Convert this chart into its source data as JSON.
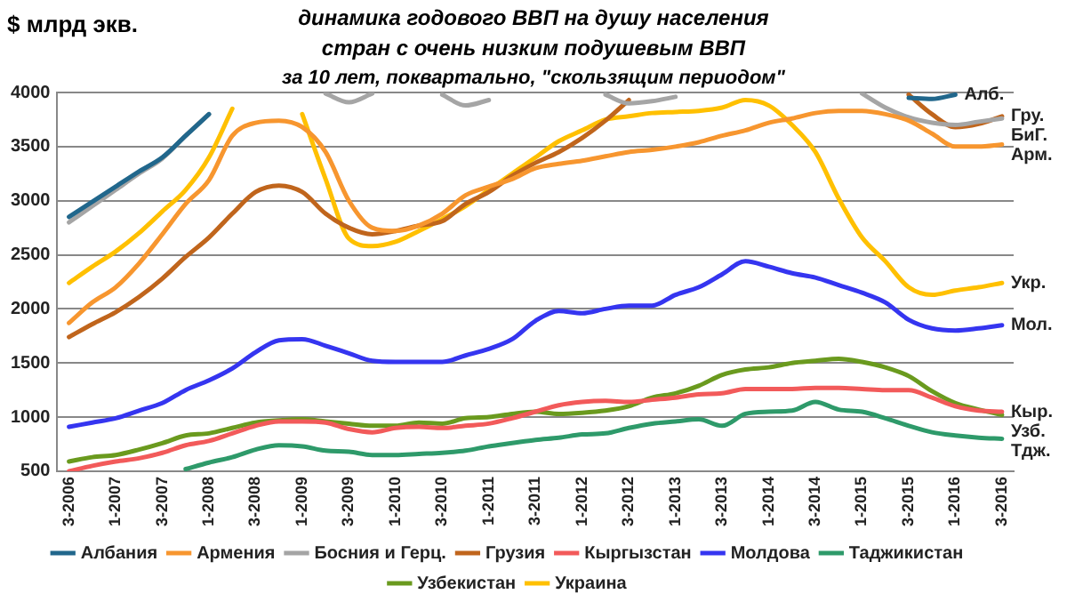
{
  "chart_data": {
    "type": "line",
    "title": "динамика годового ВВП на душу населения\nстран с очень низким подушевым ВВП",
    "subtitle": "за 10 лет, поквартально, \"скользящим периодом\"",
    "ylabel": "$ млрд экв.",
    "categories": [
      "3-2006",
      null,
      "1-2007",
      null,
      "3-2007",
      null,
      "1-2008",
      null,
      "3-2008",
      null,
      "1-2009",
      null,
      "3-2009",
      null,
      "1-2010",
      null,
      "3-2010",
      null,
      "1-2011",
      null,
      "3-2011",
      null,
      "1-2012",
      null,
      "3-2012",
      null,
      "1-2013",
      null,
      "3-2013",
      null,
      "1-2014",
      null,
      "3-2014",
      null,
      "1-2015",
      null,
      "3-2015",
      null,
      "1-2016",
      null,
      "3-2016"
    ],
    "ylim": [
      500,
      4000
    ],
    "yticks": [
      500,
      1000,
      1500,
      2000,
      2500,
      3000,
      3500,
      4000
    ],
    "grid": "y",
    "legend": "bottom",
    "marker": "none",
    "line_style": "solid",
    "series": [
      {
        "name": "Албания",
        "color": "#21678c",
        "values": [
          2850,
          2990,
          3130,
          3270,
          3400,
          3600,
          3800,
          null,
          null,
          null,
          null,
          null,
          null,
          null,
          null,
          null,
          null,
          null,
          null,
          null,
          null,
          null,
          null,
          null,
          null,
          null,
          null,
          null,
          null,
          null,
          null,
          null,
          null,
          null,
          null,
          null,
          3950,
          3940,
          3980,
          null,
          null
        ]
      },
      {
        "name": "Армения",
        "color": "#f7962f",
        "values": [
          1870,
          2060,
          2200,
          2420,
          2690,
          2970,
          3190,
          3600,
          3720,
          3740,
          3680,
          3450,
          3000,
          2750,
          2720,
          2770,
          2880,
          3050,
          3130,
          3200,
          3300,
          3340,
          3370,
          3410,
          3450,
          3470,
          3500,
          3540,
          3600,
          3650,
          3720,
          3760,
          3810,
          3830,
          3830,
          3800,
          3740,
          3620,
          3500,
          3500,
          3520
        ]
      },
      {
        "name": "Босния и Герц.",
        "color": "#a5a5a5",
        "values": [
          2800,
          2950,
          3100,
          3250,
          3390,
          3600,
          3800,
          null,
          null,
          null,
          null,
          3990,
          3910,
          3990,
          null,
          null,
          3980,
          3880,
          3930,
          null,
          null,
          null,
          null,
          3980,
          3900,
          3920,
          3960,
          null,
          null,
          null,
          null,
          null,
          null,
          null,
          3990,
          3860,
          3770,
          3720,
          3700,
          3730,
          3760
        ]
      },
      {
        "name": "Грузия",
        "color": "#c0651c",
        "values": [
          1740,
          1860,
          1970,
          2110,
          2280,
          2480,
          2660,
          2880,
          3080,
          3140,
          3080,
          2880,
          2750,
          2690,
          2720,
          2770,
          2810,
          2970,
          3080,
          3230,
          3350,
          3450,
          3580,
          3740,
          3930,
          null,
          null,
          null,
          null,
          null,
          null,
          null,
          null,
          null,
          null,
          null,
          3980,
          3800,
          3680,
          3710,
          3780
        ]
      },
      {
        "name": "Кыргызстан",
        "color": "#f25a5a",
        "values": [
          500,
          550,
          590,
          620,
          670,
          740,
          780,
          850,
          920,
          960,
          960,
          950,
          890,
          860,
          900,
          910,
          900,
          920,
          940,
          990,
          1050,
          1110,
          1140,
          1150,
          1140,
          1160,
          1180,
          1210,
          1220,
          1260,
          1260,
          1260,
          1270,
          1270,
          1260,
          1250,
          1250,
          1180,
          1100,
          1060,
          1050
        ]
      },
      {
        "name": "Молдова",
        "color": "#3535f0",
        "values": [
          910,
          950,
          990,
          1060,
          1130,
          1250,
          1340,
          1450,
          1600,
          1710,
          1720,
          1660,
          1590,
          1520,
          1510,
          1510,
          1510,
          1570,
          1630,
          1720,
          1890,
          1980,
          1960,
          2000,
          2030,
          2030,
          2130,
          2200,
          2320,
          2440,
          2390,
          2330,
          2290,
          2220,
          2150,
          2060,
          1900,
          1820,
          1800,
          1820,
          1850
        ]
      },
      {
        "name": "Таджикистан",
        "color": "#2e9a6a",
        "values": [
          null,
          null,
          null,
          null,
          null,
          520,
          580,
          630,
          700,
          740,
          730,
          690,
          680,
          650,
          650,
          660,
          670,
          690,
          730,
          760,
          790,
          810,
          840,
          850,
          900,
          940,
          960,
          980,
          920,
          1030,
          1050,
          1060,
          1140,
          1070,
          1050,
          990,
          920,
          860,
          830,
          810,
          800
        ]
      },
      {
        "name": "Узбекистан",
        "color": "#6a9a1e",
        "values": [
          590,
          630,
          650,
          700,
          760,
          830,
          850,
          900,
          950,
          970,
          980,
          960,
          940,
          920,
          920,
          950,
          940,
          990,
          1000,
          1030,
          1050,
          1030,
          1040,
          1060,
          1100,
          1180,
          1220,
          1290,
          1390,
          1440,
          1460,
          1500,
          1520,
          1540,
          1510,
          1460,
          1380,
          1240,
          1130,
          1070,
          1020
        ]
      },
      {
        "name": "Украина",
        "color": "#ffc000",
        "values": [
          2240,
          2390,
          2530,
          2700,
          2900,
          3100,
          3400,
          3850,
          null,
          null,
          3800,
          3200,
          2650,
          2580,
          2620,
          2720,
          2830,
          2950,
          3100,
          3250,
          3400,
          3550,
          3650,
          3750,
          3780,
          3810,
          3820,
          3830,
          3860,
          3930,
          3880,
          3700,
          3450,
          3020,
          2660,
          2440,
          2200,
          2130,
          2170,
          2200,
          2240
        ]
      }
    ],
    "annotations": [
      {
        "text": "Алб.",
        "x": "1-2016",
        "y": 3980
      },
      {
        "text": "Гру.",
        "x": "3-2016",
        "y": 3780
      },
      {
        "text": "БиГ.",
        "x": "3-2016",
        "y": 3760
      },
      {
        "text": "Арм.",
        "x": "3-2016",
        "y": 3520
      },
      {
        "text": "Укр.",
        "x": "3-2016",
        "y": 2240
      },
      {
        "text": "Мол.",
        "x": "3-2016",
        "y": 1850
      },
      {
        "text": "Узб.",
        "x": "3-2016",
        "y": 1020
      },
      {
        "text": "Кыр.",
        "x": "3-2016",
        "y": 1050
      },
      {
        "text": "Тдж.",
        "x": "3-2016",
        "y": 800
      }
    ]
  }
}
